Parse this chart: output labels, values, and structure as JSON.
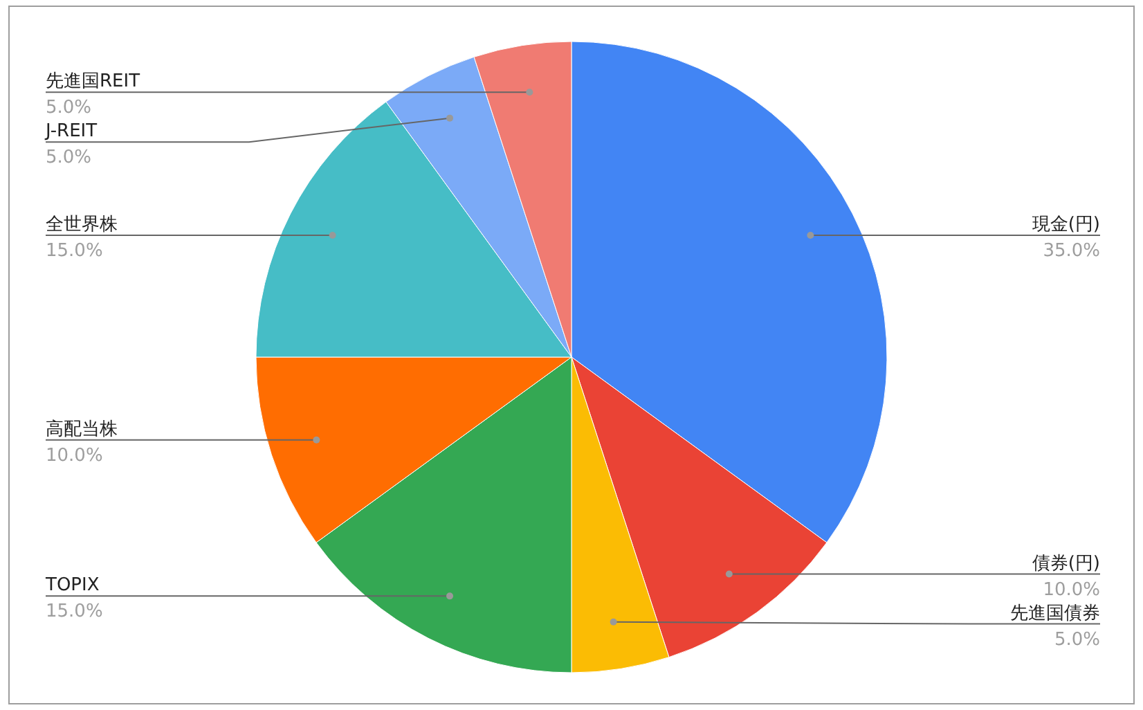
{
  "chart_data": {
    "type": "pie",
    "categories": [
      "現金(円)",
      "債券(円)",
      "先進国債券",
      "TOPIX",
      "高配当株",
      "全世界株",
      "J-REIT",
      "先進国REIT"
    ],
    "values": [
      35,
      10,
      5,
      15,
      10,
      15,
      5,
      5
    ],
    "value_labels": [
      "35.0%",
      "10.0%",
      "5.0%",
      "15.0%",
      "10.0%",
      "15.0%",
      "5.0%",
      "5.0%"
    ],
    "colors": [
      "#4285f4",
      "#ea4335",
      "#fbbc04",
      "#34a853",
      "#ff6d01",
      "#46bdc6",
      "#7baaf7",
      "#f07b72"
    ]
  }
}
